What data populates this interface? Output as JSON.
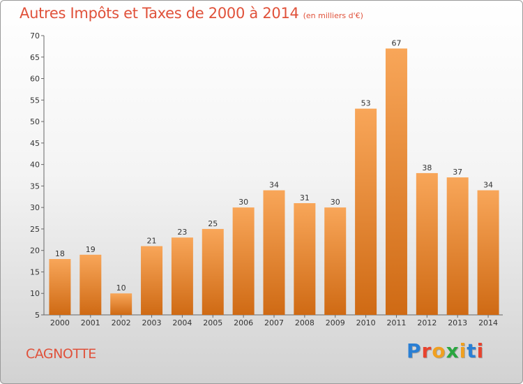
{
  "title": "Autres Impôts et Taxes de 2000 à 2014",
  "unit_note": "(en milliers d'€)",
  "commune": "CAGNOTTE",
  "logo": {
    "text": "Proxiti",
    "letter_colors": [
      "#2a7fd4",
      "#e8432e",
      "#f0a020",
      "#2aa640",
      "#f0a020",
      "#2a7fd4",
      "#e8432e"
    ]
  },
  "colors": {
    "title": "#e0513a",
    "bar_top": "#f8a659",
    "bar_bottom": "#cf6a14"
  },
  "chart_data": {
    "type": "bar",
    "title": "Autres Impôts et Taxes de 2000 à 2014",
    "categories": [
      "2000",
      "2001",
      "2002",
      "2003",
      "2004",
      "2005",
      "2006",
      "2007",
      "2008",
      "2009",
      "2010",
      "2011",
      "2012",
      "2013",
      "2014"
    ],
    "values": [
      18,
      19,
      10,
      21,
      23,
      25,
      30,
      34,
      31,
      30,
      53,
      67,
      38,
      37,
      34
    ],
    "ylim": [
      5,
      70
    ],
    "yticks": [
      5,
      10,
      15,
      20,
      25,
      30,
      35,
      40,
      45,
      50,
      55,
      60,
      65,
      70
    ],
    "grid": false,
    "legend": "none"
  }
}
